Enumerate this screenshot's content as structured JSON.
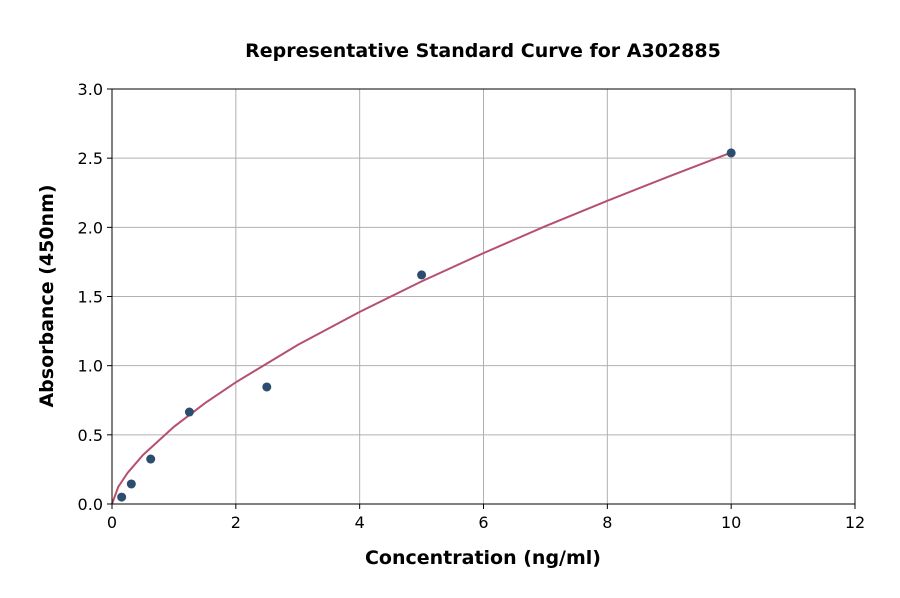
{
  "chart_data": {
    "type": "scatter",
    "title": "Representative Standard Curve for A302885",
    "xlabel": "Concentration (ng/ml)",
    "ylabel": "Absorbance (450nm)",
    "xlim": [
      0,
      12
    ],
    "ylim": [
      0,
      3.0
    ],
    "xticks": [
      0,
      2,
      4,
      6,
      8,
      10,
      12
    ],
    "xtick_labels": [
      "0",
      "2",
      "4",
      "6",
      "8",
      "10",
      "12"
    ],
    "yticks": [
      0,
      0.5,
      1.0,
      1.5,
      2.0,
      2.5,
      3.0
    ],
    "ytick_labels": [
      "0.0",
      "0.5",
      "1.0",
      "1.5",
      "2.0",
      "2.5",
      "3.0"
    ],
    "grid": true,
    "points": {
      "x": [
        0.156,
        0.3125,
        0.625,
        1.25,
        2.5,
        5,
        10
      ],
      "y": [
        0.05,
        0.145,
        0.325,
        0.665,
        0.846,
        1.656,
        2.538
      ],
      "color": "#2c4d6e"
    },
    "fit_curve": {
      "x": [
        0,
        0.1,
        0.25,
        0.5,
        1,
        1.5,
        2,
        3,
        4,
        5,
        6,
        7,
        8,
        9,
        10
      ],
      "y": [
        0,
        0.123,
        0.224,
        0.354,
        0.558,
        0.729,
        0.88,
        1.15,
        1.389,
        1.609,
        1.814,
        2.008,
        2.192,
        2.369,
        2.54
      ],
      "color": "#b5506e"
    }
  }
}
